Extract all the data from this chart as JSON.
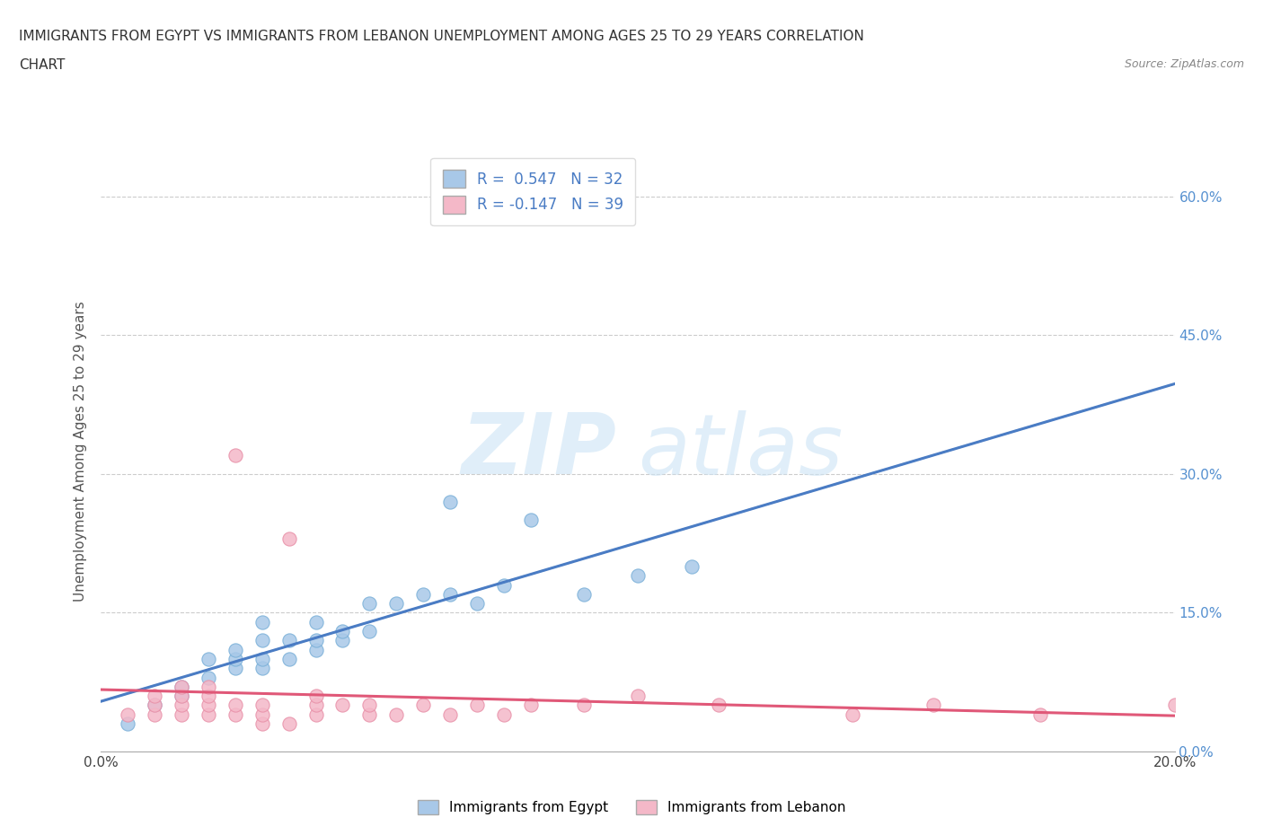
{
  "title_line1": "IMMIGRANTS FROM EGYPT VS IMMIGRANTS FROM LEBANON UNEMPLOYMENT AMONG AGES 25 TO 29 YEARS CORRELATION",
  "title_line2": "CHART",
  "source_text": "Source: ZipAtlas.com",
  "ylabel": "Unemployment Among Ages 25 to 29 years",
  "xlim": [
    0.0,
    0.2
  ],
  "ylim": [
    0.0,
    0.65
  ],
  "ytick_labels": [
    "0.0%",
    "15.0%",
    "30.0%",
    "45.0%",
    "60.0%"
  ],
  "ytick_values": [
    0.0,
    0.15,
    0.3,
    0.45,
    0.6
  ],
  "xtick_values": [
    0.0,
    0.05,
    0.1,
    0.15,
    0.2
  ],
  "egypt_color": "#a8c8e8",
  "egypt_edge_color": "#7ab0d8",
  "lebanon_color": "#f4b8c8",
  "lebanon_edge_color": "#e890a8",
  "egypt_line_color": "#4a7cc4",
  "lebanon_line_color": "#e05878",
  "right_tick_color": "#5590d0",
  "R_egypt": 0.547,
  "N_egypt": 32,
  "R_lebanon": -0.147,
  "N_lebanon": 39,
  "legend_label_egypt": "Immigrants from Egypt",
  "legend_label_lebanon": "Immigrants from Lebanon",
  "watermark_zip": "ZIP",
  "watermark_atlas": "atlas",
  "egypt_scatter_x": [
    0.005,
    0.01,
    0.015,
    0.015,
    0.02,
    0.02,
    0.025,
    0.025,
    0.025,
    0.03,
    0.03,
    0.03,
    0.03,
    0.035,
    0.035,
    0.04,
    0.04,
    0.04,
    0.045,
    0.045,
    0.05,
    0.05,
    0.055,
    0.06,
    0.065,
    0.065,
    0.07,
    0.075,
    0.08,
    0.09,
    0.1,
    0.11
  ],
  "egypt_scatter_y": [
    0.03,
    0.05,
    0.06,
    0.07,
    0.08,
    0.1,
    0.09,
    0.1,
    0.11,
    0.09,
    0.1,
    0.12,
    0.14,
    0.1,
    0.12,
    0.11,
    0.12,
    0.14,
    0.12,
    0.13,
    0.13,
    0.16,
    0.16,
    0.17,
    0.17,
    0.27,
    0.16,
    0.18,
    0.25,
    0.17,
    0.19,
    0.2
  ],
  "lebanon_scatter_x": [
    0.005,
    0.01,
    0.01,
    0.01,
    0.015,
    0.015,
    0.015,
    0.015,
    0.02,
    0.02,
    0.02,
    0.02,
    0.025,
    0.025,
    0.025,
    0.03,
    0.03,
    0.03,
    0.035,
    0.035,
    0.04,
    0.04,
    0.04,
    0.045,
    0.05,
    0.05,
    0.055,
    0.06,
    0.065,
    0.07,
    0.075,
    0.08,
    0.09,
    0.1,
    0.115,
    0.14,
    0.155,
    0.175,
    0.2
  ],
  "lebanon_scatter_y": [
    0.04,
    0.04,
    0.05,
    0.06,
    0.04,
    0.05,
    0.06,
    0.07,
    0.04,
    0.05,
    0.06,
    0.07,
    0.04,
    0.05,
    0.32,
    0.03,
    0.04,
    0.05,
    0.03,
    0.23,
    0.04,
    0.05,
    0.06,
    0.05,
    0.04,
    0.05,
    0.04,
    0.05,
    0.04,
    0.05,
    0.04,
    0.05,
    0.05,
    0.06,
    0.05,
    0.04,
    0.05,
    0.04,
    0.05
  ]
}
